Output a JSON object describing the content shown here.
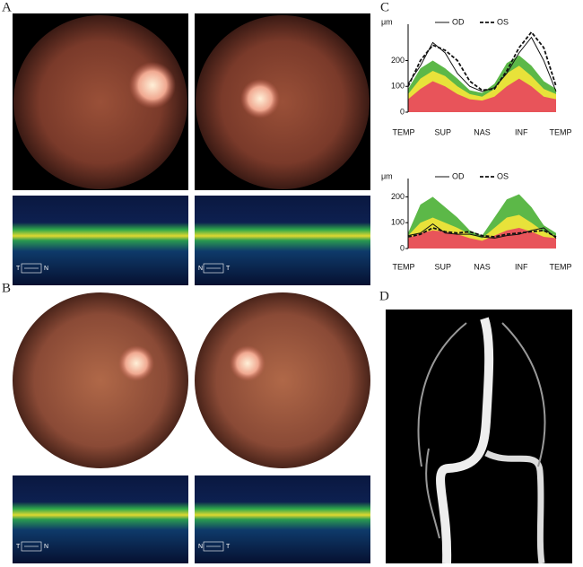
{
  "panels": {
    "A": {
      "label": "A",
      "oct": [
        {
          "left": "T",
          "right": "N"
        },
        {
          "left": "N",
          "right": "T"
        }
      ]
    },
    "B": {
      "label": "B",
      "oct": [
        {
          "left": "T",
          "right": "N"
        },
        {
          "left": "N",
          "right": "T"
        }
      ]
    },
    "C": {
      "label": "C",
      "charts": [
        {
          "type": "line",
          "y_unit": "μm",
          "x_labels": [
            "TEMP",
            "SUP",
            "NAS",
            "INF",
            "TEMP"
          ],
          "ylim": [
            0,
            320
          ],
          "yticks": [
            0,
            100,
            200
          ],
          "bands": [
            {
              "color": "#5cb848",
              "values": [
                90,
                170,
                200,
                170,
                130,
                85,
                75,
                110,
                190,
                220,
                180,
                120,
                90
              ]
            },
            {
              "color": "#e8e23a",
              "values": [
                70,
                130,
                160,
                140,
                100,
                70,
                60,
                90,
                150,
                180,
                140,
                90,
                70
              ]
            },
            {
              "color": "#e8545a",
              "values": [
                50,
                90,
                120,
                100,
                70,
                50,
                45,
                60,
                100,
                130,
                100,
                60,
                50
              ]
            }
          ],
          "series": [
            {
              "name": "OD",
              "color": "#111111",
              "dash": false,
              "values": [
                110,
                180,
                270,
                230,
                150,
                100,
                80,
                95,
                150,
                230,
                290,
                200,
                80
              ]
            },
            {
              "name": "OS",
              "color": "#111111",
              "dash": true,
              "values": [
                100,
                200,
                260,
                240,
                200,
                120,
                85,
                90,
                160,
                250,
                310,
                250,
                100
              ]
            }
          ]
        },
        {
          "type": "line",
          "y_unit": "μm",
          "x_labels": [
            "TEMP",
            "SUP",
            "NAS",
            "INF",
            "TEMP"
          ],
          "ylim": [
            0,
            250
          ],
          "yticks": [
            0,
            100,
            200
          ],
          "bands": [
            {
              "color": "#5cb848",
              "values": [
                60,
                170,
                200,
                160,
                120,
                70,
                50,
                120,
                190,
                210,
                160,
                90,
                60
              ]
            },
            {
              "color": "#e8e23a",
              "values": [
                50,
                100,
                120,
                100,
                80,
                55,
                40,
                80,
                120,
                130,
                100,
                65,
                50
              ]
            },
            {
              "color": "#e8545a",
              "values": [
                40,
                60,
                70,
                65,
                55,
                40,
                30,
                50,
                70,
                80,
                65,
                45,
                40
              ]
            }
          ],
          "series": [
            {
              "name": "OD",
              "color": "#111111",
              "dash": false,
              "values": [
                50,
                60,
                95,
                60,
                55,
                55,
                45,
                40,
                50,
                55,
                70,
                80,
                40
              ]
            },
            {
              "name": "OS",
              "color": "#111111",
              "dash": true,
              "values": [
                45,
                55,
                80,
                65,
                60,
                65,
                50,
                45,
                55,
                60,
                65,
                70,
                45
              ]
            }
          ]
        }
      ]
    },
    "D": {
      "label": "D"
    }
  }
}
